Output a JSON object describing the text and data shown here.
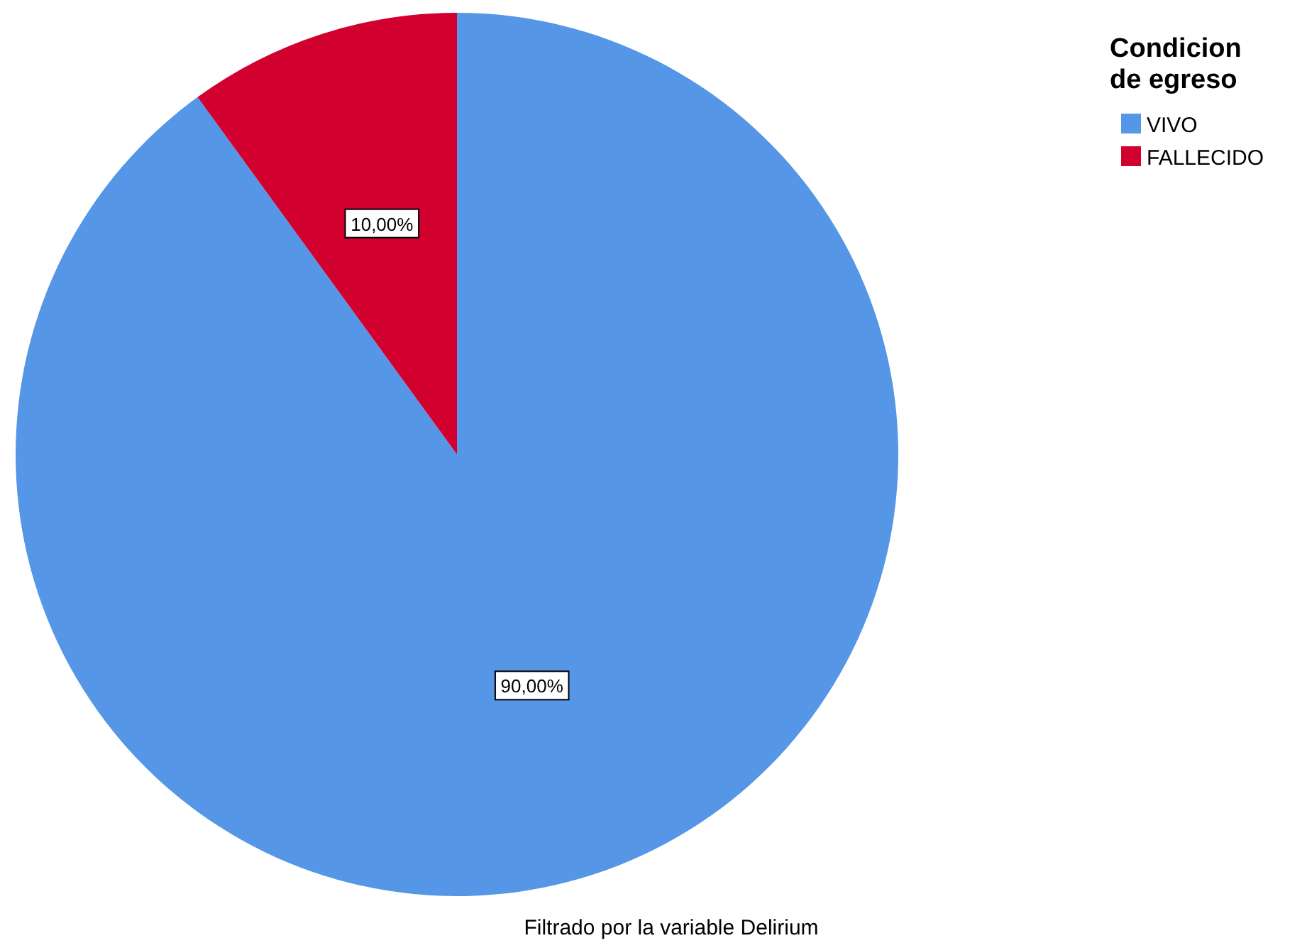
{
  "chart_data": {
    "type": "pie",
    "legend_title": "Condicion de egreso",
    "categories": [
      "VIVO",
      "FALLECIDO"
    ],
    "values": [
      90,
      10
    ],
    "colors": [
      "#5596e6",
      "#d2002e"
    ],
    "value_labels": [
      "90,00%",
      "10,00%"
    ],
    "legend": "top right",
    "annotations": [
      "Filtrado por la variable Delirium"
    ]
  }
}
